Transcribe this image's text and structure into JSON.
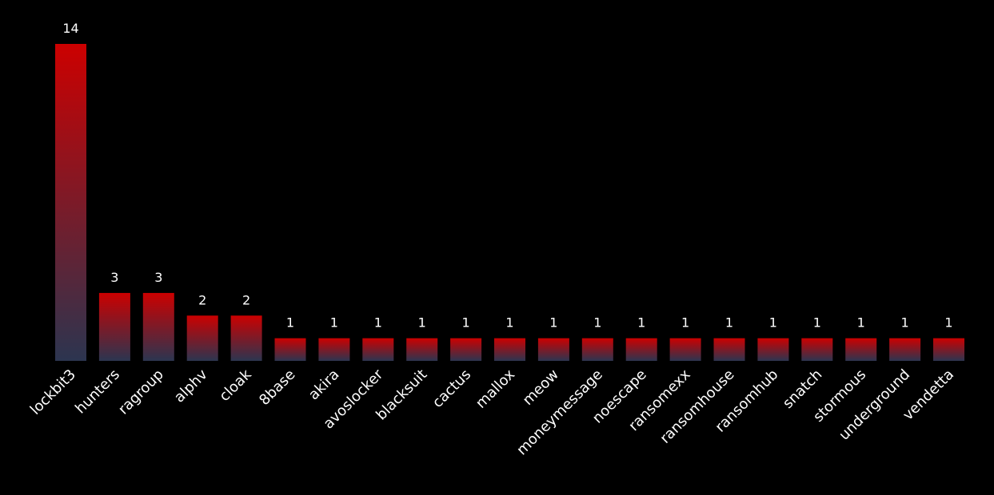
{
  "chart_data": {
    "type": "bar",
    "title": "",
    "xlabel": "",
    "ylabel": "",
    "ylim": [
      0,
      14
    ],
    "grid": false,
    "legend": "none",
    "categories": [
      "lockbit3",
      "hunters",
      "ragroup",
      "alphv",
      "cloak",
      "8base",
      "akira",
      "avoslocker",
      "blacksuit",
      "cactus",
      "mallox",
      "meow",
      "moneymessage",
      "noescape",
      "ransomexx",
      "ransomhouse",
      "ransomhub",
      "snatch",
      "stormous",
      "underground",
      "vendetta"
    ],
    "values": [
      14,
      3,
      3,
      2,
      2,
      1,
      1,
      1,
      1,
      1,
      1,
      1,
      1,
      1,
      1,
      1,
      1,
      1,
      1,
      1,
      1
    ],
    "value_labels": [
      "14",
      "3",
      "3",
      "2",
      "2",
      "1",
      "1",
      "1",
      "1",
      "1",
      "1",
      "1",
      "1",
      "1",
      "1",
      "1",
      "1",
      "1",
      "1",
      "1",
      "1"
    ],
    "colors": {
      "background": "#000000",
      "bar_top": "#cc0000",
      "bar_bottom": "#2c3550",
      "text": "#ffffff"
    }
  }
}
